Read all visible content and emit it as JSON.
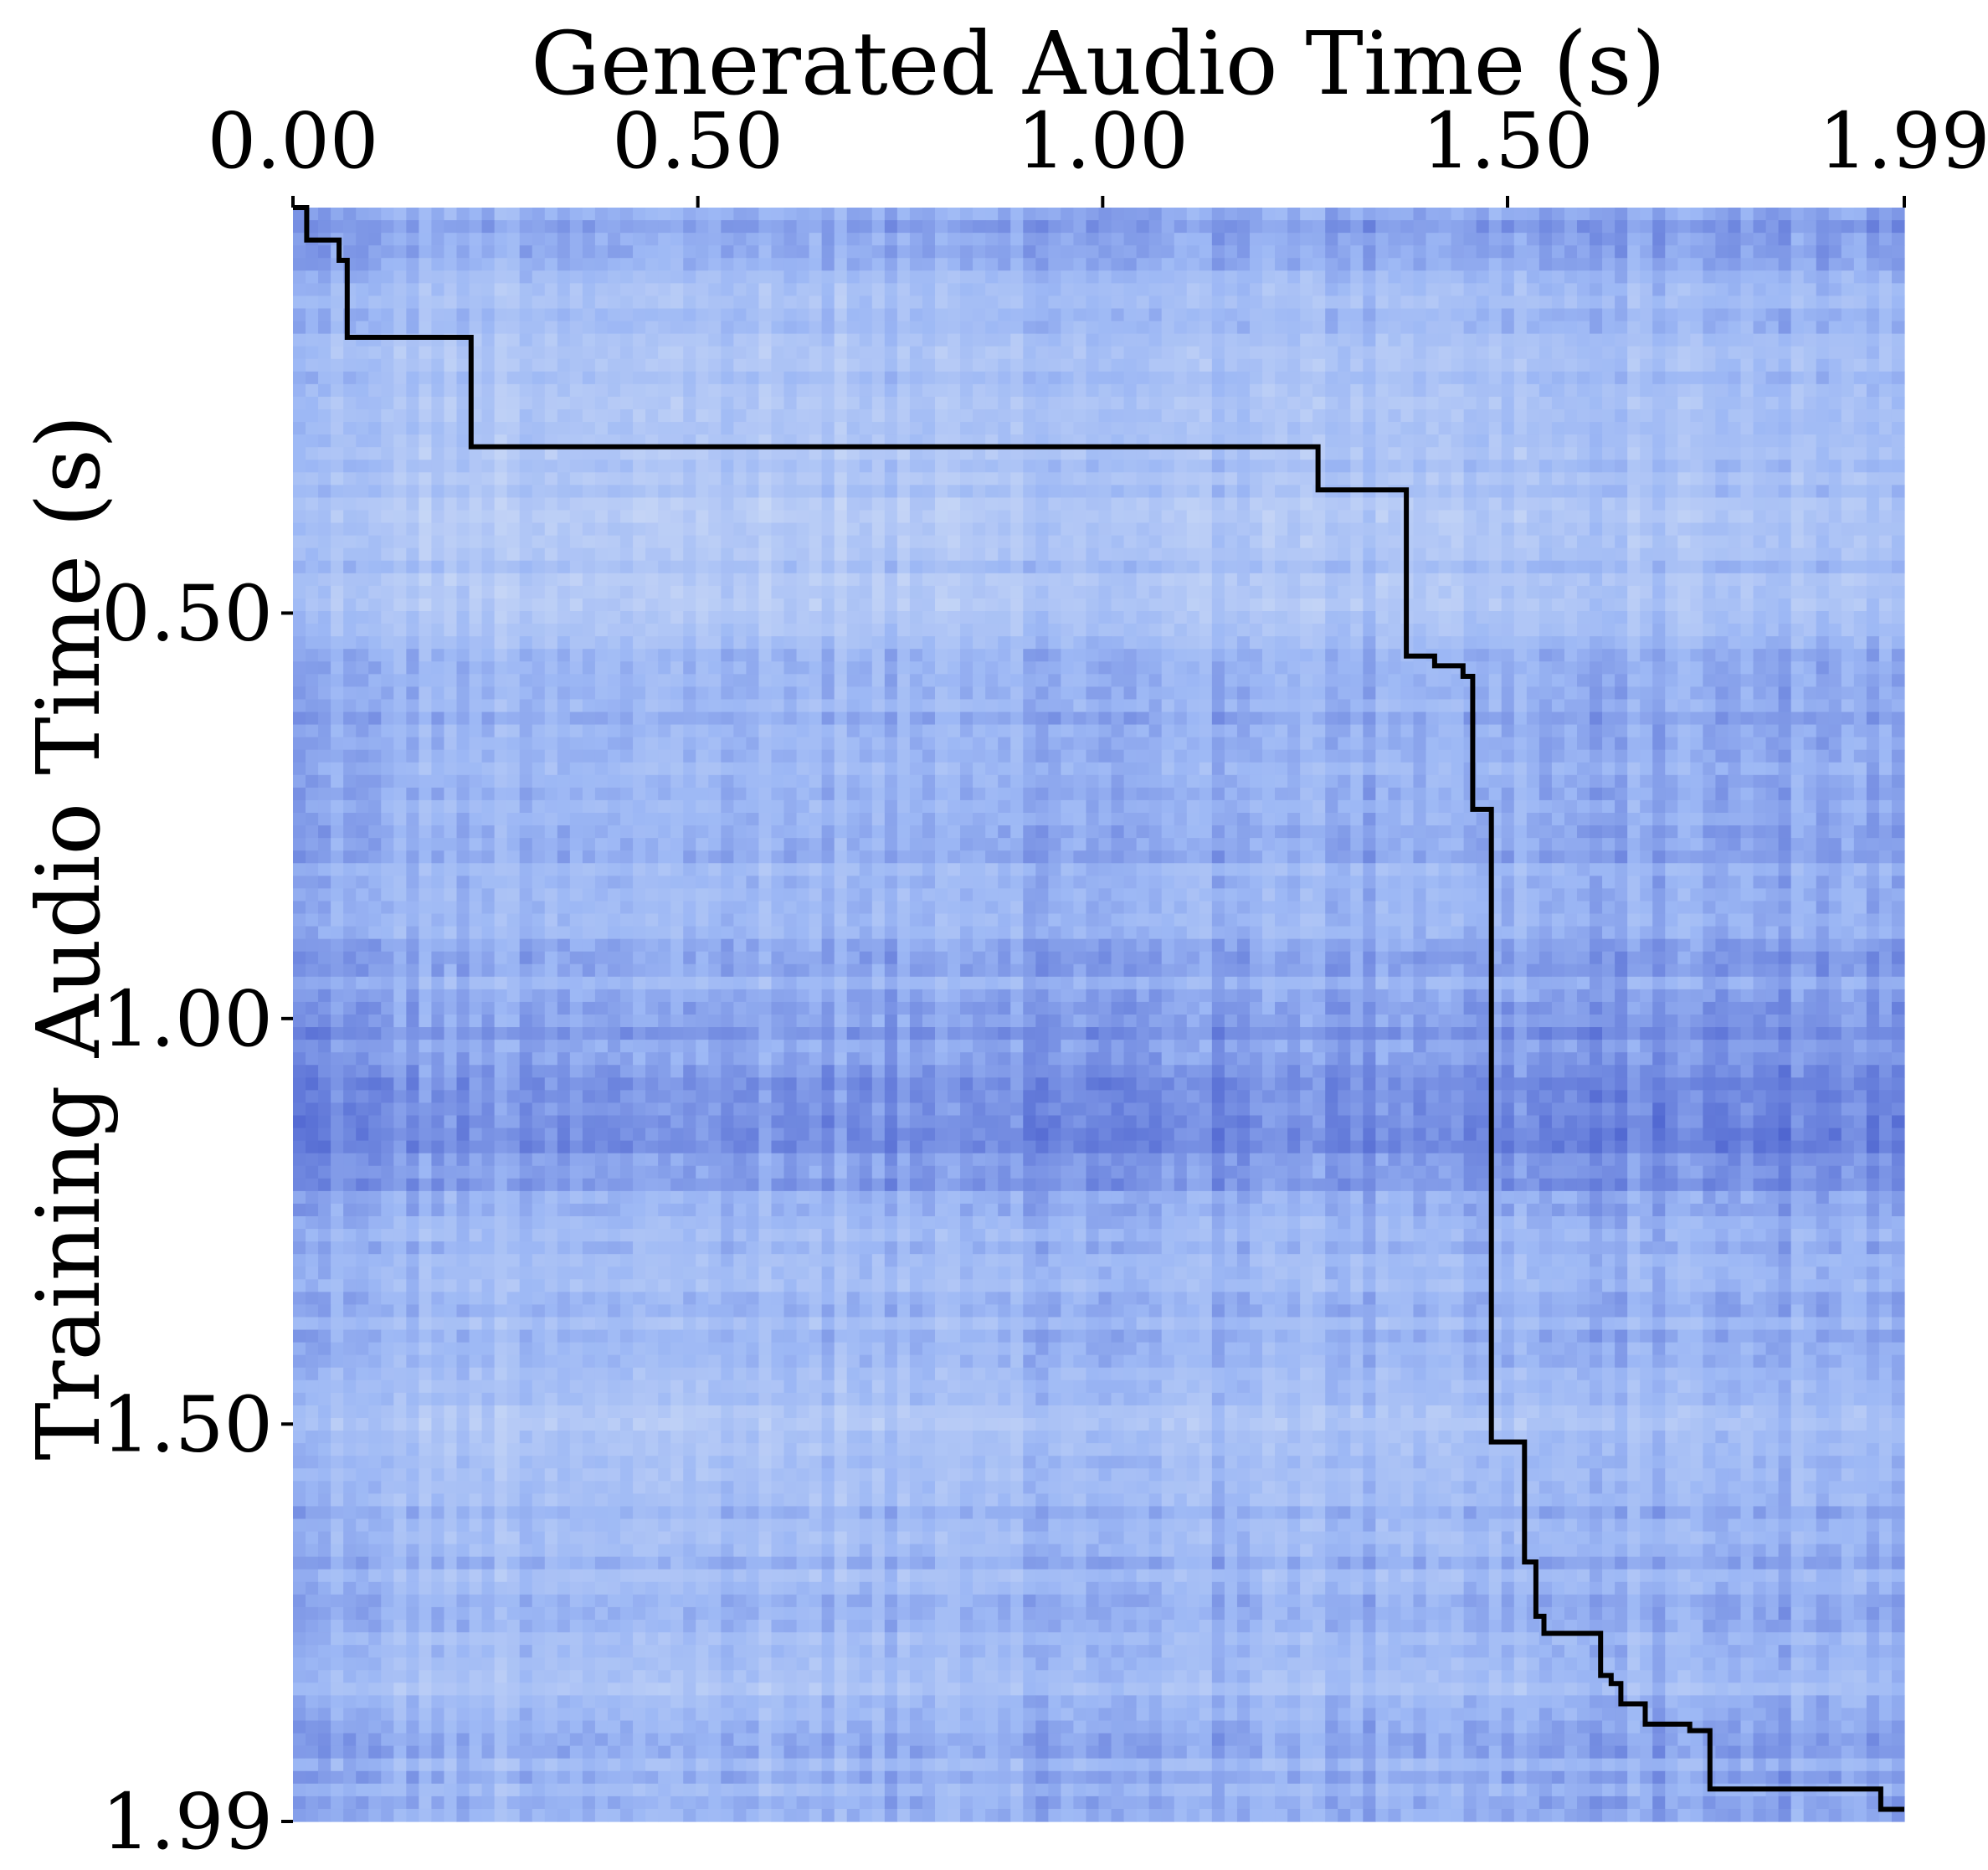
{
  "chart_data": {
    "type": "heatmap",
    "title": "",
    "xlabel": "Generated Audio Time (s)",
    "ylabel": "Training Audio Time (s)",
    "xlim": [
      0.0,
      1.99
    ],
    "ylim": [
      0.0,
      1.99
    ],
    "x_axis_position": "top",
    "y_axis_inverted": true,
    "x_ticks": [
      {
        "value": 0.0,
        "label": "0.00"
      },
      {
        "value": 0.5,
        "label": "0.50"
      },
      {
        "value": 1.0,
        "label": "1.00"
      },
      {
        "value": 1.5,
        "label": "1.50"
      },
      {
        "value": 1.99,
        "label": "1.99"
      }
    ],
    "y_ticks": [
      {
        "value": 0.5,
        "label": "0.50"
      },
      {
        "value": 1.0,
        "label": "1.00"
      },
      {
        "value": 1.5,
        "label": "1.50"
      },
      {
        "value": 1.99,
        "label": "1.99"
      }
    ],
    "colormap": {
      "low": "#dce6f7",
      "mid": "#9db8f5",
      "high": "#3a4fc6"
    },
    "grid": false,
    "legend": "none",
    "alignment_path": {
      "color": "#000000",
      "points": [
        [
          0.0,
          0.0
        ],
        [
          0.017,
          0.0
        ],
        [
          0.017,
          0.04
        ],
        [
          0.057,
          0.04
        ],
        [
          0.057,
          0.065
        ],
        [
          0.067,
          0.065
        ],
        [
          0.067,
          0.16
        ],
        [
          0.22,
          0.16
        ],
        [
          0.22,
          0.295
        ],
        [
          1.266,
          0.295
        ],
        [
          1.266,
          0.348
        ],
        [
          1.375,
          0.348
        ],
        [
          1.375,
          0.553
        ],
        [
          1.41,
          0.553
        ],
        [
          1.41,
          0.565
        ],
        [
          1.445,
          0.565
        ],
        [
          1.445,
          0.578
        ],
        [
          1.457,
          0.578
        ],
        [
          1.457,
          0.742
        ],
        [
          1.48,
          0.742
        ],
        [
          1.48,
          1.522
        ],
        [
          1.521,
          1.522
        ],
        [
          1.521,
          1.67
        ],
        [
          1.535,
          1.67
        ],
        [
          1.535,
          1.737
        ],
        [
          1.545,
          1.737
        ],
        [
          1.545,
          1.758
        ],
        [
          1.615,
          1.758
        ],
        [
          1.615,
          1.81
        ],
        [
          1.628,
          1.81
        ],
        [
          1.628,
          1.82
        ],
        [
          1.64,
          1.82
        ],
        [
          1.64,
          1.845
        ],
        [
          1.67,
          1.845
        ],
        [
          1.67,
          1.87
        ],
        [
          1.725,
          1.87
        ],
        [
          1.725,
          1.878
        ],
        [
          1.75,
          1.878
        ],
        [
          1.75,
          1.95
        ],
        [
          1.961,
          1.95
        ],
        [
          1.961,
          1.975
        ],
        [
          1.99,
          1.975
        ]
      ]
    },
    "heatmap_intensity": {
      "row_profile": [
        [
          0.0,
          0.65
        ],
        [
          0.05,
          0.55
        ],
        [
          0.1,
          0.45
        ],
        [
          0.18,
          0.32
        ],
        [
          0.25,
          0.35
        ],
        [
          0.32,
          0.3
        ],
        [
          0.4,
          0.28
        ],
        [
          0.5,
          0.35
        ],
        [
          0.6,
          0.55
        ],
        [
          0.7,
          0.5
        ],
        [
          0.8,
          0.55
        ],
        [
          0.85,
          0.4
        ],
        [
          0.9,
          0.55
        ],
        [
          0.95,
          0.6
        ],
        [
          1.0,
          0.68
        ],
        [
          1.05,
          0.75
        ],
        [
          1.1,
          0.85
        ],
        [
          1.15,
          0.82
        ],
        [
          1.2,
          0.7
        ],
        [
          1.3,
          0.45
        ],
        [
          1.4,
          0.45
        ],
        [
          1.5,
          0.35
        ],
        [
          1.6,
          0.45
        ],
        [
          1.7,
          0.5
        ],
        [
          1.8,
          0.35
        ],
        [
          1.9,
          0.55
        ],
        [
          1.99,
          0.5
        ]
      ],
      "col_profile": [
        [
          0.0,
          0.7
        ],
        [
          0.1,
          0.5
        ],
        [
          0.25,
          0.35
        ],
        [
          0.4,
          0.38
        ],
        [
          0.5,
          0.42
        ],
        [
          0.6,
          0.45
        ],
        [
          0.7,
          0.4
        ],
        [
          0.85,
          0.55
        ],
        [
          0.95,
          0.58
        ],
        [
          1.1,
          0.5
        ],
        [
          1.25,
          0.48
        ],
        [
          1.35,
          0.55
        ],
        [
          1.45,
          0.5
        ],
        [
          1.55,
          0.55
        ],
        [
          1.65,
          0.58
        ],
        [
          1.75,
          0.55
        ],
        [
          1.85,
          0.65
        ],
        [
          1.99,
          0.6
        ]
      ],
      "noise": 0.12,
      "grid_cells": 128
    }
  }
}
